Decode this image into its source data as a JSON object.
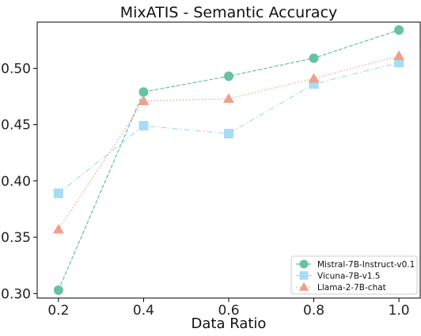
{
  "chart_data": {
    "type": "line",
    "title": "MixATIS - Semantic Accuracy",
    "xlabel": "Data Ratio",
    "ylabel": "",
    "x": [
      0.2,
      0.4,
      0.6,
      0.8,
      1.0
    ],
    "x_tick_labels": [
      "0.2",
      "0.4",
      "0.6",
      "0.8",
      "1.0"
    ],
    "y_ticks": [
      0.3,
      0.35,
      0.4,
      0.45,
      0.5
    ],
    "y_tick_labels": [
      "0.30",
      "0.35",
      "0.40",
      "0.45",
      "0.50"
    ],
    "xlim": [
      0.15,
      1.05
    ],
    "ylim": [
      0.296,
      0.541
    ],
    "grid": false,
    "legend_position": "bottom-right",
    "series": [
      {
        "name": "Mistral-7B-Instruct-v0.1",
        "values": [
          0.303,
          0.479,
          0.493,
          0.509,
          0.534
        ],
        "color": "#66c2a5",
        "marker": "circle",
        "line_style": "dashed"
      },
      {
        "name": "Vicuna-7B-v1.5",
        "values": [
          0.389,
          0.449,
          0.442,
          0.486,
          0.505
        ],
        "color": "#a6dcf5",
        "marker": "square",
        "line_style": "dashdot"
      },
      {
        "name": "Llama-2-7B-chat",
        "values": [
          0.357,
          0.471,
          0.473,
          0.491,
          0.511
        ],
        "color": "#f0a08a",
        "marker": "triangle",
        "line_style": "dotted"
      }
    ]
  }
}
